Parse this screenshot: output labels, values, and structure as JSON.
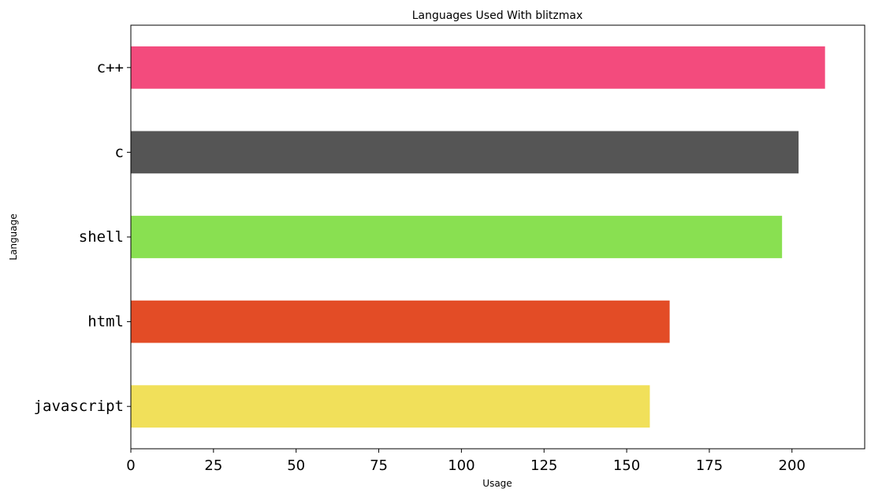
{
  "chart_data": {
    "type": "bar",
    "orientation": "horizontal",
    "title": "Languages Used With blitzmax",
    "xlabel": "Usage",
    "ylabel": "Language",
    "xlim": [
      0,
      222
    ],
    "xticks": [
      0,
      25,
      50,
      75,
      100,
      125,
      150,
      175,
      200
    ],
    "grid": false,
    "legend": "none",
    "categories": [
      "c++",
      "c",
      "shell",
      "html",
      "javascript"
    ],
    "values": [
      210,
      202,
      197,
      163,
      157
    ],
    "colors": [
      "#f34b7d",
      "#555555",
      "#89e051",
      "#e34c26",
      "#f1e05a"
    ]
  }
}
